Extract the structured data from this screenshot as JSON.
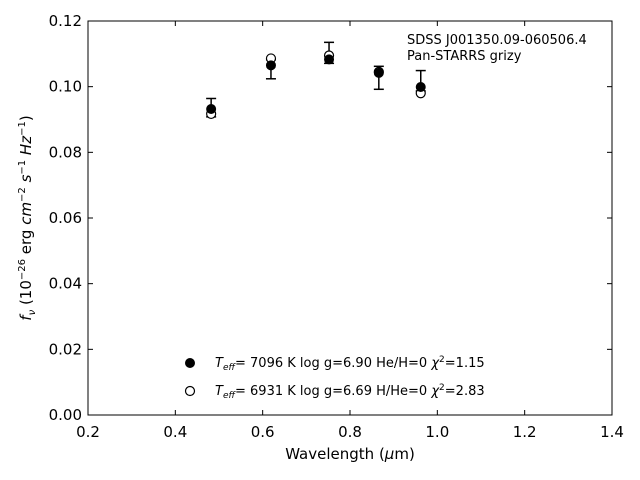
{
  "chart_data": {
    "type": "scatter",
    "xlabel": "Wavelength (μm)",
    "ylabel": "f_ν (10^-26 erg cm^-2 s^-1 Hz^-1)",
    "xlim": [
      0.2,
      1.4
    ],
    "ylim": [
      0.0,
      0.12
    ],
    "x_ticks": [
      "0.2",
      "0.4",
      "0.6",
      "0.8",
      "1.0",
      "1.2",
      "1.4"
    ],
    "y_ticks": [
      "0.00",
      "0.02",
      "0.04",
      "0.06",
      "0.08",
      "0.10",
      "0.12"
    ],
    "grid": false,
    "annotation": {
      "line1": "SDSS J001350.09-060506.4",
      "line2": "Pan-STARRS grizy"
    },
    "observed": {
      "x": [
        0.482,
        0.619,
        0.752,
        0.866,
        0.962
      ],
      "y": [
        0.0936,
        0.1053,
        0.1103,
        0.1027,
        0.1018
      ],
      "yerr": [
        0.0028,
        0.0029,
        0.0032,
        0.0035,
        0.0031
      ]
    },
    "series": [
      {
        "marker": "filled-circle",
        "legend": {
          "teff": "7096 K",
          "logg": "log g=6.90",
          "comp": "He/H=0",
          "chi2": "=1.15"
        },
        "x": [
          0.482,
          0.619,
          0.752,
          0.866,
          0.962
        ],
        "y": [
          0.0932,
          0.1065,
          0.1083,
          0.1042,
          0.0999
        ]
      },
      {
        "marker": "open-circle",
        "legend": {
          "teff": "6931 K",
          "logg": "log g=6.69",
          "comp": "H/He=0",
          "chi2": "=2.83"
        },
        "x": [
          0.482,
          0.619,
          0.752,
          0.866,
          0.962
        ],
        "y": [
          0.0917,
          0.1086,
          0.1095,
          0.1045,
          0.098
        ]
      }
    ]
  }
}
